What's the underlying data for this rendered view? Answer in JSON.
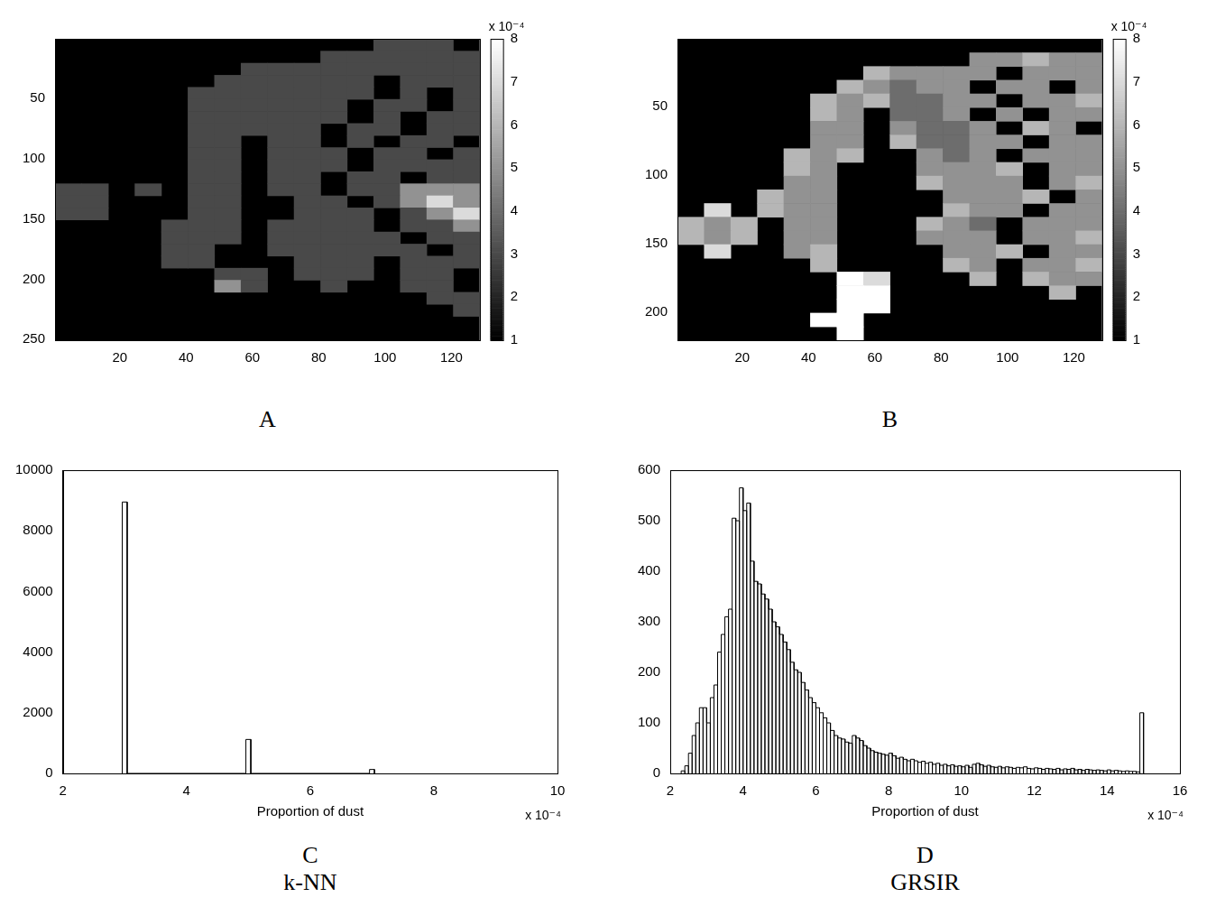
{
  "chart_data": [
    {
      "type": "heatmap",
      "title": "A",
      "xlim": [
        0.5,
        128.5
      ],
      "ylim": [
        0.5,
        250.5
      ],
      "xticks": [
        20,
        40,
        60,
        80,
        100,
        120
      ],
      "yticks": [
        50,
        100,
        150,
        200,
        250
      ],
      "grid": false,
      "cell_x": [
        4.5,
        12.5,
        20.5,
        28.5,
        36.5,
        44.5,
        52.5,
        60.5,
        68.5,
        76.5,
        84.5,
        92.5,
        100.5,
        108.5,
        116.5,
        124.5
      ],
      "cell_y": [
        5.5,
        15.5,
        25.5,
        35.5,
        45.5,
        55.5,
        65.5,
        75.5,
        85.5,
        95.5,
        105.5,
        115.5,
        125.5,
        135.5,
        145.5,
        155.5,
        165.5,
        175.5,
        185.5,
        195.5,
        205.5,
        215.5,
        225.5,
        235.5,
        245.5
      ],
      "cells": [
        [
          null,
          null,
          null,
          null,
          null,
          null,
          null,
          null,
          null,
          null,
          null,
          null,
          3,
          3,
          3,
          null
        ],
        [
          null,
          null,
          null,
          null,
          null,
          null,
          null,
          null,
          null,
          null,
          3,
          3,
          3,
          3,
          3,
          3
        ],
        [
          null,
          null,
          null,
          null,
          null,
          null,
          null,
          3,
          3,
          3,
          3,
          3,
          3,
          3,
          3,
          3
        ],
        [
          null,
          null,
          null,
          null,
          null,
          null,
          3,
          3,
          3,
          3,
          3,
          3,
          null,
          3,
          3,
          3
        ],
        [
          null,
          null,
          null,
          null,
          null,
          3,
          3,
          3,
          3,
          3,
          3,
          3,
          null,
          3,
          null,
          3
        ],
        [
          null,
          null,
          null,
          null,
          null,
          3,
          3,
          3,
          3,
          3,
          3,
          null,
          3,
          3,
          null,
          3
        ],
        [
          null,
          null,
          null,
          null,
          null,
          3,
          3,
          3,
          3,
          3,
          3,
          null,
          3,
          null,
          3,
          3
        ],
        [
          null,
          null,
          null,
          null,
          null,
          3,
          3,
          3,
          3,
          3,
          null,
          3,
          3,
          null,
          3,
          3
        ],
        [
          null,
          null,
          null,
          null,
          null,
          3,
          3,
          null,
          3,
          3,
          null,
          3,
          null,
          3,
          3,
          null
        ],
        [
          null,
          null,
          null,
          null,
          null,
          3,
          3,
          null,
          3,
          3,
          3,
          null,
          3,
          3,
          null,
          3
        ],
        [
          null,
          null,
          null,
          null,
          null,
          3,
          3,
          null,
          3,
          3,
          3,
          null,
          3,
          3,
          3,
          3
        ],
        [
          null,
          null,
          null,
          null,
          null,
          3,
          3,
          null,
          3,
          3,
          null,
          3,
          3,
          null,
          3,
          3
        ],
        [
          3,
          3,
          null,
          3,
          null,
          3,
          3,
          null,
          3,
          3,
          null,
          3,
          3,
          5,
          5,
          5
        ],
        [
          3,
          3,
          null,
          null,
          null,
          3,
          3,
          null,
          null,
          3,
          3,
          null,
          3,
          5,
          7,
          5
        ],
        [
          3,
          3,
          null,
          null,
          null,
          3,
          3,
          null,
          null,
          3,
          3,
          3,
          null,
          3,
          5,
          7
        ],
        [
          null,
          null,
          null,
          null,
          3,
          3,
          3,
          null,
          3,
          3,
          3,
          3,
          null,
          3,
          3,
          5
        ],
        [
          null,
          null,
          null,
          null,
          3,
          3,
          3,
          null,
          3,
          3,
          3,
          3,
          3,
          null,
          3,
          3
        ],
        [
          null,
          null,
          null,
          null,
          3,
          3,
          null,
          null,
          3,
          3,
          3,
          3,
          3,
          3,
          null,
          3
        ],
        [
          null,
          null,
          null,
          null,
          3,
          3,
          null,
          null,
          null,
          3,
          3,
          3,
          null,
          3,
          3,
          3
        ],
        [
          null,
          null,
          null,
          null,
          null,
          null,
          3,
          3,
          null,
          3,
          3,
          3,
          null,
          3,
          3,
          null
        ],
        [
          null,
          null,
          null,
          null,
          null,
          null,
          5,
          3,
          null,
          null,
          3,
          null,
          null,
          3,
          3,
          null
        ],
        [
          null,
          null,
          null,
          null,
          null,
          null,
          null,
          null,
          null,
          null,
          null,
          null,
          null,
          null,
          3,
          3
        ],
        [
          null,
          null,
          null,
          null,
          null,
          null,
          null,
          null,
          null,
          null,
          null,
          null,
          null,
          null,
          null,
          3
        ],
        [
          null,
          null,
          null,
          null,
          null,
          null,
          null,
          null,
          null,
          null,
          null,
          null,
          null,
          null,
          null,
          null
        ],
        [
          null,
          null,
          null,
          null,
          null,
          null,
          null,
          null,
          null,
          null,
          null,
          null,
          null,
          null,
          null,
          null
        ]
      ],
      "colorbar": {
        "range": [
          1,
          8
        ],
        "ticks": [
          1,
          2,
          3,
          4,
          5,
          6,
          7,
          8
        ],
        "label": "x 10⁻⁴"
      }
    },
    {
      "type": "heatmap",
      "title": "B",
      "xlim": [
        0.5,
        128.5
      ],
      "ylim": [
        0.5,
        220.5
      ],
      "xticks": [
        20,
        40,
        60,
        80,
        100,
        120
      ],
      "yticks": [
        50,
        100,
        150,
        200
      ],
      "grid": false,
      "cell_x": [
        4.5,
        12.5,
        20.5,
        28.5,
        36.5,
        44.5,
        52.5,
        60.5,
        68.5,
        76.5,
        84.5,
        92.5,
        100.5,
        108.5,
        116.5,
        124.5
      ],
      "cell_y": [
        5.5,
        15.5,
        25.5,
        35.5,
        45.5,
        55.5,
        65.5,
        75.5,
        85.5,
        95.5,
        105.5,
        115.5,
        125.5,
        135.5,
        145.5,
        155.5,
        165.5,
        175.5,
        185.5,
        195.5,
        205.5,
        215.5
      ],
      "cells": [
        [
          null,
          null,
          null,
          null,
          null,
          null,
          null,
          null,
          null,
          null,
          null,
          null,
          null,
          null,
          null,
          null
        ],
        [
          null,
          null,
          null,
          null,
          null,
          null,
          null,
          null,
          null,
          null,
          null,
          5,
          5,
          6,
          5,
          5
        ],
        [
          null,
          null,
          null,
          null,
          null,
          null,
          null,
          6,
          5,
          5,
          5,
          5,
          null,
          5,
          5,
          5
        ],
        [
          null,
          null,
          null,
          null,
          null,
          null,
          6,
          5,
          4,
          5,
          5,
          null,
          5,
          5,
          null,
          5
        ],
        [
          null,
          null,
          null,
          null,
          null,
          6,
          5,
          6,
          4,
          4,
          5,
          5,
          null,
          5,
          5,
          6
        ],
        [
          null,
          null,
          null,
          null,
          null,
          6,
          5,
          null,
          4,
          4,
          5,
          null,
          5,
          null,
          5,
          5
        ],
        [
          null,
          null,
          null,
          null,
          null,
          5,
          5,
          null,
          5,
          4,
          4,
          5,
          null,
          6,
          5,
          null
        ],
        [
          null,
          null,
          null,
          null,
          null,
          5,
          5,
          null,
          6,
          4,
          4,
          5,
          5,
          null,
          5,
          5
        ],
        [
          null,
          null,
          null,
          null,
          6,
          5,
          6,
          null,
          null,
          5,
          4,
          5,
          null,
          5,
          5,
          5
        ],
        [
          null,
          null,
          null,
          null,
          6,
          5,
          null,
          null,
          null,
          5,
          5,
          5,
          6,
          null,
          5,
          5
        ],
        [
          null,
          null,
          null,
          null,
          5,
          5,
          null,
          null,
          null,
          6,
          5,
          5,
          5,
          null,
          5,
          6
        ],
        [
          null,
          null,
          null,
          6,
          5,
          5,
          null,
          null,
          null,
          null,
          5,
          5,
          5,
          6,
          null,
          5
        ],
        [
          null,
          7,
          null,
          6,
          5,
          5,
          null,
          null,
          null,
          null,
          6,
          5,
          5,
          null,
          5,
          5
        ],
        [
          6,
          5,
          6,
          null,
          5,
          5,
          null,
          null,
          null,
          6,
          5,
          4,
          null,
          5,
          5,
          5
        ],
        [
          6,
          5,
          6,
          null,
          5,
          5,
          null,
          null,
          null,
          5,
          5,
          5,
          null,
          5,
          5,
          6
        ],
        [
          null,
          7,
          null,
          null,
          5,
          6,
          null,
          null,
          null,
          null,
          5,
          5,
          6,
          null,
          5,
          5
        ],
        [
          null,
          null,
          null,
          null,
          null,
          6,
          null,
          null,
          null,
          null,
          6,
          5,
          null,
          5,
          5,
          6
        ],
        [
          null,
          null,
          null,
          null,
          null,
          null,
          8,
          7,
          null,
          null,
          null,
          6,
          null,
          6,
          5,
          5
        ],
        [
          null,
          null,
          null,
          null,
          null,
          null,
          8,
          8,
          null,
          null,
          null,
          null,
          null,
          null,
          6,
          null
        ],
        [
          null,
          null,
          null,
          null,
          null,
          null,
          8,
          8,
          null,
          null,
          null,
          null,
          null,
          null,
          null,
          null
        ],
        [
          null,
          null,
          null,
          null,
          null,
          8,
          8,
          null,
          null,
          null,
          null,
          null,
          null,
          null,
          null,
          null
        ],
        [
          null,
          null,
          null,
          null,
          null,
          null,
          8,
          null,
          null,
          null,
          null,
          null,
          null,
          null,
          null,
          null
        ]
      ],
      "colorbar": {
        "range": [
          1,
          8
        ],
        "ticks": [
          1,
          2,
          3,
          4,
          5,
          6,
          7,
          8
        ],
        "label": "x 10⁻⁴"
      }
    },
    {
      "type": "histogram",
      "title": "C",
      "subtitle": "k-NN",
      "x_label": "Proportion of dust",
      "x_multiplier": "x 10⁻⁴",
      "bins": [
        2.96,
        3.04,
        4.96,
        5.04,
        6.96,
        7.04
      ],
      "counts": [
        8950,
        0,
        1120,
        0,
        130
      ],
      "color": "#ffffff",
      "xlim": [
        2,
        10
      ],
      "xticks": [
        2,
        4,
        6,
        8,
        10
      ],
      "ylim": [
        0,
        10000
      ],
      "yticks": [
        0,
        2000,
        4000,
        6000,
        8000,
        10000
      ],
      "grid": false
    },
    {
      "type": "histogram",
      "title": "D",
      "subtitle": "GRSIR",
      "x_label": "Proportion of dust",
      "x_multiplier": "x 10⁻⁴",
      "bins": [
        2.3,
        2.4,
        2.5,
        2.6,
        2.7,
        2.8,
        2.9,
        3.0,
        3.1,
        3.2,
        3.3,
        3.4,
        3.5,
        3.6,
        3.7,
        3.8,
        3.9,
        4.0,
        4.1,
        4.2,
        4.3,
        4.4,
        4.5,
        4.6,
        4.7,
        4.8,
        4.9,
        5.0,
        5.1,
        5.2,
        5.3,
        5.4,
        5.5,
        5.6,
        5.7,
        5.8,
        5.9,
        6.0,
        6.1,
        6.2,
        6.3,
        6.4,
        6.5,
        6.6,
        6.7,
        6.8,
        6.9,
        7.0,
        7.1,
        7.2,
        7.3,
        7.4,
        7.5,
        7.6,
        7.7,
        7.8,
        7.9,
        8.0,
        8.1,
        8.2,
        8.3,
        8.4,
        8.5,
        8.6,
        8.7,
        8.8,
        8.9,
        9.0,
        9.1,
        9.2,
        9.3,
        9.4,
        9.5,
        9.6,
        9.7,
        9.8,
        9.9,
        10.0,
        10.1,
        10.2,
        10.3,
        10.4,
        10.5,
        10.6,
        10.7,
        10.8,
        10.9,
        11.0,
        11.1,
        11.2,
        11.3,
        11.4,
        11.5,
        11.6,
        11.7,
        11.8,
        11.9,
        12.0,
        12.1,
        12.2,
        12.3,
        12.4,
        12.5,
        12.6,
        12.7,
        12.8,
        12.9,
        13.0,
        13.1,
        13.2,
        13.3,
        13.4,
        13.5,
        13.6,
        13.7,
        13.8,
        13.9,
        14.0,
        14.1,
        14.2,
        14.3,
        14.4,
        14.5,
        14.6,
        14.7,
        14.8,
        14.9,
        15.0
      ],
      "counts": [
        5,
        15,
        40,
        75,
        100,
        130,
        130,
        100,
        150,
        175,
        240,
        275,
        310,
        325,
        505,
        500,
        565,
        520,
        535,
        420,
        380,
        375,
        355,
        345,
        325,
        300,
        290,
        275,
        260,
        245,
        220,
        205,
        200,
        180,
        165,
        150,
        140,
        130,
        120,
        110,
        100,
        85,
        75,
        70,
        68,
        62,
        60,
        75,
        70,
        65,
        55,
        50,
        45,
        42,
        40,
        38,
        36,
        40,
        35,
        30,
        32,
        28,
        25,
        28,
        25,
        22,
        24,
        20,
        22,
        18,
        20,
        16,
        18,
        15,
        17,
        14,
        15,
        13,
        16,
        12,
        18,
        20,
        17,
        14,
        16,
        13,
        12,
        14,
        11,
        13,
        12,
        10,
        12,
        11,
        13,
        10,
        9,
        11,
        10,
        8,
        10,
        9,
        8,
        10,
        7,
        9,
        8,
        10,
        7,
        8,
        6,
        8,
        7,
        6,
        7,
        6,
        5,
        7,
        5,
        6,
        5,
        4,
        5,
        4,
        4,
        3,
        120
      ],
      "color": "#ffffff",
      "xlim": [
        2,
        16
      ],
      "xticks": [
        2,
        4,
        6,
        8,
        10,
        12,
        14,
        16
      ],
      "ylim": [
        0,
        600
      ],
      "yticks": [
        0,
        100,
        200,
        300,
        400,
        500,
        600
      ],
      "grid": false
    }
  ]
}
